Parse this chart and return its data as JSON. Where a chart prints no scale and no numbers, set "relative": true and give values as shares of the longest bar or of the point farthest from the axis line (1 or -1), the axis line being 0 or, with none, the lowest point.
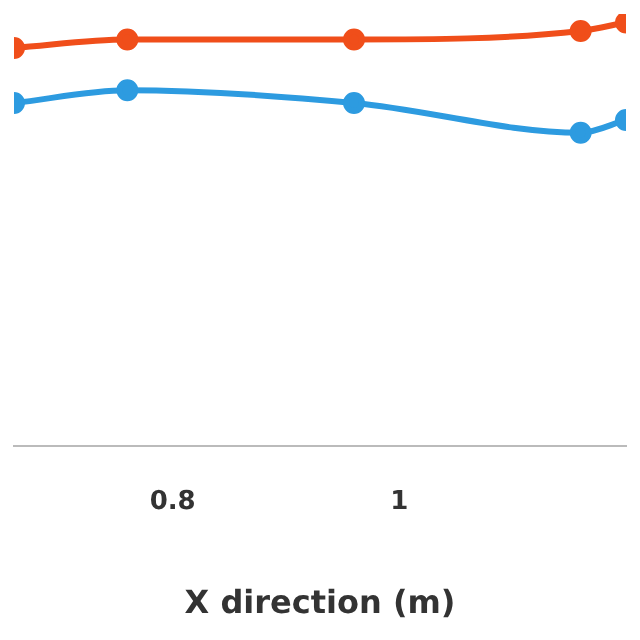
{
  "chart_data": {
    "type": "line",
    "xlabel": "X direction (m)",
    "relative": true,
    "x": [
      0.66,
      0.76,
      0.96,
      1.16,
      1.2
    ],
    "xlim": [
      0.66,
      1.2
    ],
    "xticks": [
      0.8,
      1
    ],
    "marker": "circle",
    "grid": false,
    "legend": false,
    "series": [
      {
        "color": "#f04e1a",
        "values": [
          0.94,
          0.96,
          0.96,
          0.98,
          1
        ]
      },
      {
        "color": "#2d9be0",
        "values": [
          0.81,
          0.84,
          0.81,
          0.74,
          0.77
        ]
      }
    ]
  }
}
